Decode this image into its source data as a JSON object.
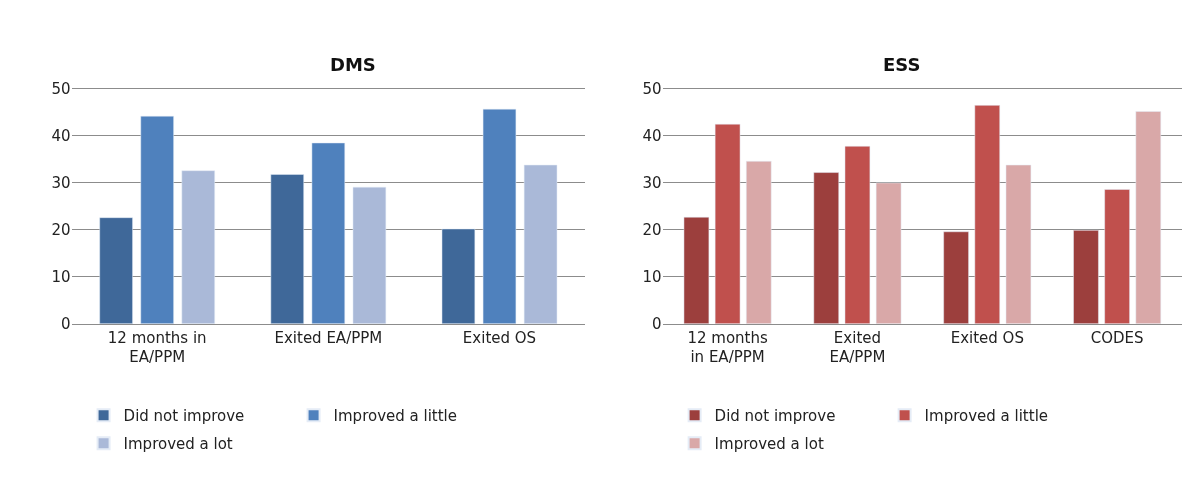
{
  "chart_data": [
    {
      "type": "bar",
      "title": "DMS",
      "categories": [
        "12 months in EA/PPM",
        "Exited EA/PPM",
        "Exited OS"
      ],
      "ylim": [
        0,
        50
      ],
      "yticks": [
        0,
        10,
        20,
        30,
        40,
        50
      ],
      "grid": "y",
      "legend": "bottom",
      "series": [
        {
          "name": "Did not improve",
          "color": "#3f6899",
          "values": [
            22.6,
            31.8,
            20.2
          ]
        },
        {
          "name": "Improved a little",
          "color": "#4f81bd",
          "values": [
            44.2,
            38.5,
            45.7
          ]
        },
        {
          "name": "Improved a lot",
          "color": "#aab9d8",
          "values": [
            32.6,
            29.1,
            33.8
          ]
        }
      ]
    },
    {
      "type": "bar",
      "title": "ESS",
      "categories": [
        "12 months in EA/PPM",
        "Exited EA/PPM",
        "Exited OS",
        "CODES"
      ],
      "ylim": [
        0,
        50
      ],
      "yticks": [
        0,
        10,
        20,
        30,
        40,
        50
      ],
      "grid": "y",
      "legend": "bottom",
      "series": [
        {
          "name": "Did not improve",
          "color": "#9c3f3d",
          "values": [
            22.7,
            32.2,
            19.6,
            19.9
          ]
        },
        {
          "name": "Improved a little",
          "color": "#c0504d",
          "values": [
            42.5,
            37.8,
            46.5,
            28.6
          ]
        },
        {
          "name": "Improved a lot",
          "color": "#d9a8a8",
          "values": [
            34.6,
            30.0,
            33.8,
            45.2
          ]
        }
      ]
    }
  ]
}
